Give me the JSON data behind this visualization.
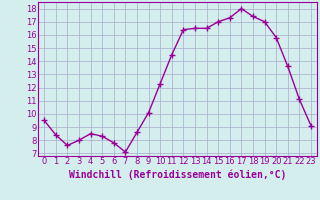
{
  "x": [
    0,
    1,
    2,
    3,
    4,
    5,
    6,
    7,
    8,
    9,
    10,
    11,
    12,
    13,
    14,
    15,
    16,
    17,
    18,
    19,
    20,
    21,
    22,
    23
  ],
  "y": [
    9.5,
    8.4,
    7.6,
    8.0,
    8.5,
    8.3,
    7.8,
    7.1,
    8.6,
    10.1,
    12.3,
    14.5,
    16.4,
    16.5,
    16.5,
    17.0,
    17.3,
    18.0,
    17.4,
    17.0,
    15.8,
    13.6,
    11.1,
    9.1
  ],
  "line_color": "#990099",
  "marker": "+",
  "markersize": 4,
  "linewidth": 1.0,
  "markeredgewidth": 1.0,
  "xlabel": "Windchill (Refroidissement éolien,°C)",
  "xlabel_fontsize": 7,
  "ytick_labels": [
    "7",
    "8",
    "9",
    "10",
    "11",
    "12",
    "13",
    "14",
    "15",
    "16",
    "17",
    "18"
  ],
  "ytick_values": [
    7,
    8,
    9,
    10,
    11,
    12,
    13,
    14,
    15,
    16,
    17,
    18
  ],
  "ylim": [
    6.8,
    18.5
  ],
  "xlim": [
    -0.5,
    23.5
  ],
  "bg_color": "#d4eeee",
  "grid_color": "#aaaacc",
  "tick_fontsize": 6,
  "xtick_labels": [
    "0",
    "1",
    "2",
    "3",
    "4",
    "5",
    "6",
    "7",
    "8",
    "9",
    "10",
    "11",
    "12",
    "13",
    "14",
    "15",
    "16",
    "17",
    "18",
    "19",
    "20",
    "21",
    "22",
    "23"
  ]
}
